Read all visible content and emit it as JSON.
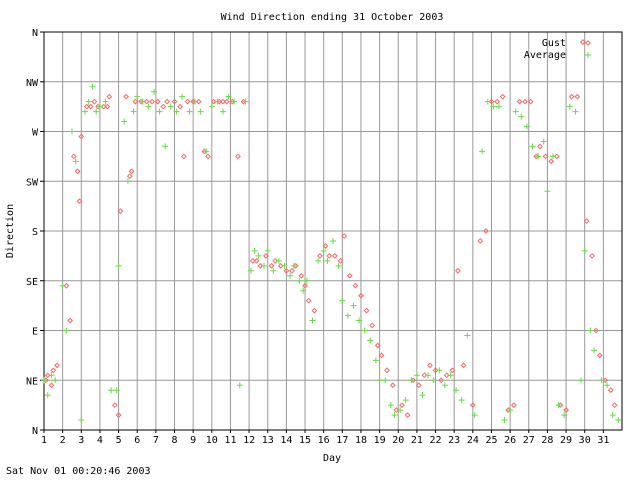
{
  "footer": {
    "timestamp": "Sat Nov 01 00:20:46 2003"
  },
  "chart_data": {
    "type": "scatter",
    "title": "Wind Direction ending 31 October 2003",
    "xlabel": "Day",
    "ylabel": "Direction",
    "xlim": [
      1,
      32
    ],
    "x_ticks": [
      1,
      2,
      3,
      4,
      5,
      6,
      7,
      8,
      9,
      10,
      11,
      12,
      13,
      14,
      15,
      16,
      17,
      18,
      19,
      20,
      21,
      22,
      23,
      24,
      25,
      26,
      27,
      28,
      29,
      30,
      31
    ],
    "y_ticks": [
      "N",
      "NE",
      "E",
      "SE",
      "S",
      "SW",
      "W",
      "NW",
      "N"
    ],
    "ylim_labels": [
      "N",
      "N"
    ],
    "grid": true,
    "legend": "top-right",
    "colors": {
      "gust": "#ff6666",
      "average": "#66dd44",
      "grid": "#999999",
      "axis": "#000000"
    },
    "series": [
      {
        "name": "Gust",
        "marker": "diamond",
        "points": [
          [
            1.1,
            1
          ],
          [
            1.2,
            1.1
          ],
          [
            1.4,
            0.9
          ],
          [
            1.5,
            1.2
          ],
          [
            1.7,
            1.3
          ],
          [
            2.2,
            2.9
          ],
          [
            2.4,
            2.2
          ],
          [
            2.6,
            5.5
          ],
          [
            2.8,
            5.2
          ],
          [
            2.9,
            4.6
          ],
          [
            3.0,
            5.9
          ],
          [
            3.3,
            6.5
          ],
          [
            3.5,
            6.5
          ],
          [
            3.7,
            6.6
          ],
          [
            3.9,
            6.5
          ],
          [
            4.2,
            6.5
          ],
          [
            4.4,
            6.5
          ],
          [
            4.5,
            6.7
          ],
          [
            4.8,
            0.5
          ],
          [
            5.0,
            0.3
          ],
          [
            5.1,
            4.4
          ],
          [
            5.4,
            6.7
          ],
          [
            5.6,
            5.1
          ],
          [
            5.7,
            5.2
          ],
          [
            5.9,
            6.6
          ],
          [
            6.2,
            6.6
          ],
          [
            6.5,
            6.6
          ],
          [
            6.8,
            6.6
          ],
          [
            7.1,
            6.6
          ],
          [
            7.4,
            6.5
          ],
          [
            7.6,
            6.6
          ],
          [
            8.0,
            6.6
          ],
          [
            8.3,
            6.5
          ],
          [
            8.5,
            5.5
          ],
          [
            8.7,
            6.6
          ],
          [
            9.0,
            6.6
          ],
          [
            9.3,
            6.6
          ],
          [
            9.6,
            5.6
          ],
          [
            9.8,
            5.5
          ],
          [
            10.1,
            6.6
          ],
          [
            10.4,
            6.6
          ],
          [
            10.6,
            6.6
          ],
          [
            10.8,
            6.6
          ],
          [
            11.1,
            6.6
          ],
          [
            11.4,
            5.5
          ],
          [
            11.7,
            6.6
          ],
          [
            12.2,
            3.4
          ],
          [
            12.4,
            3.4
          ],
          [
            12.6,
            3.3
          ],
          [
            12.9,
            3.5
          ],
          [
            13.2,
            3.3
          ],
          [
            13.4,
            3.4
          ],
          [
            13.7,
            3.3
          ],
          [
            14.0,
            3.2
          ],
          [
            14.3,
            3.2
          ],
          [
            14.5,
            3.3
          ],
          [
            14.8,
            3.1
          ],
          [
            15.0,
            2.9
          ],
          [
            15.2,
            2.6
          ],
          [
            15.5,
            2.4
          ],
          [
            15.8,
            3.5
          ],
          [
            16.1,
            3.7
          ],
          [
            16.3,
            3.5
          ],
          [
            16.6,
            3.5
          ],
          [
            16.9,
            3.4
          ],
          [
            17.1,
            3.9
          ],
          [
            17.4,
            3.1
          ],
          [
            17.7,
            2.9
          ],
          [
            18.0,
            2.7
          ],
          [
            18.3,
            2.4
          ],
          [
            18.6,
            2.1
          ],
          [
            18.9,
            1.7
          ],
          [
            19.1,
            1.5
          ],
          [
            19.4,
            1.2
          ],
          [
            19.7,
            0.9
          ],
          [
            19.9,
            0.4
          ],
          [
            20.2,
            0.5
          ],
          [
            20.5,
            0.3
          ],
          [
            20.8,
            1.0
          ],
          [
            21.1,
            0.9
          ],
          [
            21.4,
            1.1
          ],
          [
            21.7,
            1.3
          ],
          [
            22.0,
            1.2
          ],
          [
            22.3,
            1.0
          ],
          [
            22.6,
            1.1
          ],
          [
            22.9,
            1.2
          ],
          [
            23.2,
            3.2
          ],
          [
            23.5,
            1.3
          ],
          [
            24.0,
            0.5
          ],
          [
            24.4,
            3.8
          ],
          [
            24.7,
            4.0
          ],
          [
            25.0,
            6.6
          ],
          [
            25.3,
            6.6
          ],
          [
            25.6,
            6.7
          ],
          [
            25.9,
            0.4
          ],
          [
            26.2,
            0.5
          ],
          [
            26.5,
            6.6
          ],
          [
            26.8,
            6.6
          ],
          [
            27.1,
            6.6
          ],
          [
            27.4,
            5.5
          ],
          [
            27.6,
            5.7
          ],
          [
            27.9,
            5.5
          ],
          [
            28.2,
            5.4
          ],
          [
            28.5,
            5.5
          ],
          [
            28.7,
            0.5
          ],
          [
            29.0,
            0.4
          ],
          [
            29.3,
            6.7
          ],
          [
            29.6,
            6.7
          ],
          [
            29.9,
            7.8
          ],
          [
            30.1,
            4.2
          ],
          [
            30.4,
            3.5
          ],
          [
            30.6,
            2.0
          ],
          [
            30.8,
            1.5
          ],
          [
            31.1,
            1.0
          ],
          [
            31.4,
            0.8
          ],
          [
            31.6,
            0.5
          ]
        ]
      },
      {
        "name": "Average",
        "marker": "plus",
        "points": [
          [
            1.0,
            1.0
          ],
          [
            1.2,
            0.7
          ],
          [
            1.4,
            1.1
          ],
          [
            1.6,
            1.0
          ],
          [
            2.0,
            2.9
          ],
          [
            2.2,
            2.0
          ],
          [
            2.5,
            6.0
          ],
          [
            2.7,
            5.4
          ],
          [
            3.0,
            0.2
          ],
          [
            3.2,
            6.4
          ],
          [
            3.4,
            6.6
          ],
          [
            3.6,
            6.9
          ],
          [
            3.8,
            6.4
          ],
          [
            4.0,
            6.5
          ],
          [
            4.3,
            6.6
          ],
          [
            4.6,
            0.8
          ],
          [
            4.9,
            0.8
          ],
          [
            5.0,
            3.3
          ],
          [
            5.3,
            6.2
          ],
          [
            5.5,
            5.0
          ],
          [
            5.8,
            6.4
          ],
          [
            6.0,
            6.7
          ],
          [
            6.3,
            6.6
          ],
          [
            6.6,
            6.5
          ],
          [
            6.9,
            6.8
          ],
          [
            7.2,
            6.4
          ],
          [
            7.5,
            5.7
          ],
          [
            7.8,
            6.5
          ],
          [
            8.1,
            6.4
          ],
          [
            8.4,
            6.7
          ],
          [
            8.8,
            6.4
          ],
          [
            9.1,
            6.6
          ],
          [
            9.4,
            6.4
          ],
          [
            9.7,
            5.6
          ],
          [
            10.0,
            6.5
          ],
          [
            10.3,
            6.6
          ],
          [
            10.6,
            6.4
          ],
          [
            10.9,
            6.7
          ],
          [
            11.2,
            6.6
          ],
          [
            11.5,
            0.9
          ],
          [
            11.8,
            6.6
          ],
          [
            12.1,
            3.2
          ],
          [
            12.3,
            3.6
          ],
          [
            12.5,
            3.5
          ],
          [
            12.8,
            3.3
          ],
          [
            13.0,
            3.6
          ],
          [
            13.3,
            3.2
          ],
          [
            13.6,
            3.4
          ],
          [
            13.9,
            3.3
          ],
          [
            14.2,
            3.1
          ],
          [
            14.4,
            3.3
          ],
          [
            14.7,
            3.0
          ],
          [
            14.9,
            2.8
          ],
          [
            15.1,
            3.0
          ],
          [
            15.4,
            2.2
          ],
          [
            15.7,
            3.4
          ],
          [
            16.0,
            3.6
          ],
          [
            16.2,
            3.4
          ],
          [
            16.5,
            3.8
          ],
          [
            16.8,
            3.3
          ],
          [
            17.0,
            2.6
          ],
          [
            17.3,
            2.3
          ],
          [
            17.6,
            2.5
          ],
          [
            17.9,
            2.2
          ],
          [
            18.2,
            2.0
          ],
          [
            18.5,
            1.8
          ],
          [
            18.8,
            1.4
          ],
          [
            19.0,
            1.0
          ],
          [
            19.3,
            1.0
          ],
          [
            19.6,
            0.5
          ],
          [
            19.8,
            0.3
          ],
          [
            20.1,
            0.4
          ],
          [
            20.4,
            0.6
          ],
          [
            20.7,
            1.0
          ],
          [
            21.0,
            1.1
          ],
          [
            21.3,
            0.7
          ],
          [
            21.6,
            1.1
          ],
          [
            21.9,
            1.0
          ],
          [
            22.2,
            1.2
          ],
          [
            22.5,
            0.9
          ],
          [
            22.8,
            1.1
          ],
          [
            23.1,
            0.8
          ],
          [
            23.4,
            0.6
          ],
          [
            23.7,
            1.9
          ],
          [
            24.1,
            0.3
          ],
          [
            24.5,
            5.6
          ],
          [
            24.8,
            6.6
          ],
          [
            25.1,
            6.5
          ],
          [
            25.4,
            6.5
          ],
          [
            25.7,
            0.2
          ],
          [
            26.0,
            0.4
          ],
          [
            26.3,
            6.4
          ],
          [
            26.6,
            6.3
          ],
          [
            26.9,
            6.1
          ],
          [
            27.2,
            5.7
          ],
          [
            27.5,
            5.5
          ],
          [
            27.8,
            5.8
          ],
          [
            28.0,
            4.8
          ],
          [
            28.3,
            5.5
          ],
          [
            28.6,
            0.5
          ],
          [
            28.9,
            0.3
          ],
          [
            29.2,
            6.5
          ],
          [
            29.5,
            6.4
          ],
          [
            29.8,
            1.0
          ],
          [
            30.0,
            3.6
          ],
          [
            30.3,
            2.0
          ],
          [
            30.5,
            1.6
          ],
          [
            30.9,
            1.0
          ],
          [
            31.2,
            0.9
          ],
          [
            31.5,
            0.3
          ],
          [
            31.8,
            0.2
          ]
        ]
      }
    ]
  }
}
